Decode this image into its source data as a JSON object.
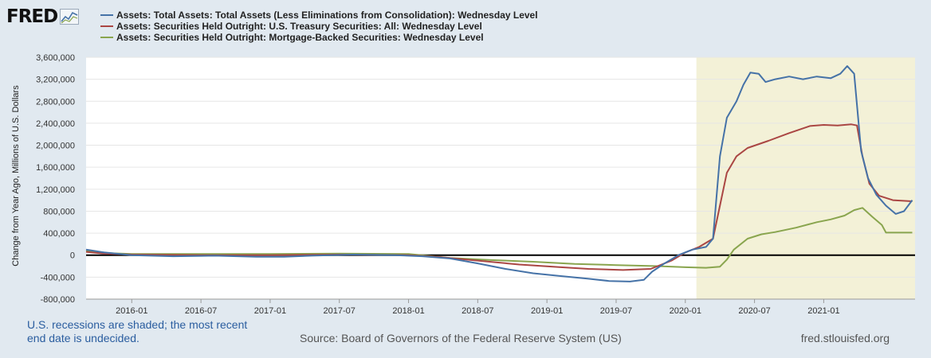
{
  "logo": {
    "text": "FRED",
    "icon": "fred-chart-logo-icon"
  },
  "legend": [
    {
      "label": "Assets: Total Assets: Total Assets (Less Eliminations from Consolidation): Wednesday Level",
      "color": "#4572a7"
    },
    {
      "label": "Assets: Securities Held Outright: U.S. Treasury Securities: All: Wednesday Level",
      "color": "#aa4643"
    },
    {
      "label": "Assets: Securities Held Outright: Mortgage-Backed Securities: Wednesday Level",
      "color": "#89a54e"
    }
  ],
  "footer": {
    "note": "U.S. recessions are shaded; the most recent end date is undecided.",
    "source": "Source: Board of Governors of the Federal Reserve System (US)",
    "site": "fred.stlouisfed.org"
  },
  "chart_data": {
    "type": "line",
    "ylabel": "Change from Year Ago, Millions of U.S. Dollars",
    "ylim": [
      -800000,
      3600000
    ],
    "yticks": [
      -800000,
      -400000,
      0,
      400000,
      800000,
      1200000,
      1600000,
      2000000,
      2400000,
      2800000,
      3200000,
      3600000
    ],
    "ytick_labels": [
      "-800,000",
      "-400,000",
      "0",
      "400,000",
      "800,000",
      "1,200,000",
      "1,600,000",
      "2,000,000",
      "2,400,000",
      "2,800,000",
      "3,200,000",
      "3,600,000"
    ],
    "xlim": [
      2015.67,
      2021.66
    ],
    "xticks": [
      2016.0,
      2016.5,
      2017.0,
      2017.5,
      2018.0,
      2018.5,
      2019.0,
      2019.5,
      2020.0,
      2020.5,
      2021.0
    ],
    "xtick_labels": [
      "2016-01",
      "2016-07",
      "2017-01",
      "2017-07",
      "2018-01",
      "2018-07",
      "2019-01",
      "2019-07",
      "2020-01",
      "2020-07",
      "2021-01"
    ],
    "recession": {
      "start": 2020.08,
      "end": 2021.66
    },
    "series": [
      {
        "name": "Total Assets",
        "color": "#4572a7",
        "points": [
          [
            2015.67,
            100000
          ],
          [
            2015.8,
            50000
          ],
          [
            2016.0,
            0
          ],
          [
            2016.3,
            -20000
          ],
          [
            2016.6,
            -10000
          ],
          [
            2016.9,
            -30000
          ],
          [
            2017.1,
            -30000
          ],
          [
            2017.3,
            -10000
          ],
          [
            2017.6,
            10000
          ],
          [
            2017.9,
            0
          ],
          [
            2018.1,
            -20000
          ],
          [
            2018.3,
            -60000
          ],
          [
            2018.5,
            -150000
          ],
          [
            2018.7,
            -250000
          ],
          [
            2018.9,
            -330000
          ],
          [
            2019.1,
            -380000
          ],
          [
            2019.3,
            -430000
          ],
          [
            2019.45,
            -470000
          ],
          [
            2019.6,
            -480000
          ],
          [
            2019.7,
            -450000
          ],
          [
            2019.76,
            -300000
          ],
          [
            2019.85,
            -150000
          ],
          [
            2019.95,
            0
          ],
          [
            2020.05,
            100000
          ],
          [
            2020.15,
            150000
          ],
          [
            2020.2,
            300000
          ],
          [
            2020.25,
            1800000
          ],
          [
            2020.3,
            2500000
          ],
          [
            2020.37,
            2800000
          ],
          [
            2020.42,
            3100000
          ],
          [
            2020.47,
            3320000
          ],
          [
            2020.53,
            3300000
          ],
          [
            2020.58,
            3150000
          ],
          [
            2020.65,
            3200000
          ],
          [
            2020.75,
            3250000
          ],
          [
            2020.85,
            3200000
          ],
          [
            2020.95,
            3250000
          ],
          [
            2021.05,
            3220000
          ],
          [
            2021.12,
            3300000
          ],
          [
            2021.17,
            3440000
          ],
          [
            2021.22,
            3300000
          ],
          [
            2021.27,
            1900000
          ],
          [
            2021.32,
            1400000
          ],
          [
            2021.38,
            1100000
          ],
          [
            2021.45,
            900000
          ],
          [
            2021.52,
            750000
          ],
          [
            2021.58,
            800000
          ],
          [
            2021.64,
            1000000
          ]
        ]
      },
      {
        "name": "U.S. Treasury Securities",
        "color": "#aa4643",
        "points": [
          [
            2015.67,
            60000
          ],
          [
            2015.8,
            30000
          ],
          [
            2016.0,
            10000
          ],
          [
            2016.5,
            0
          ],
          [
            2017.0,
            0
          ],
          [
            2017.5,
            10000
          ],
          [
            2018.0,
            0
          ],
          [
            2018.2,
            -30000
          ],
          [
            2018.5,
            -100000
          ],
          [
            2018.8,
            -170000
          ],
          [
            2019.1,
            -220000
          ],
          [
            2019.3,
            -250000
          ],
          [
            2019.55,
            -270000
          ],
          [
            2019.75,
            -250000
          ],
          [
            2019.9,
            -100000
          ],
          [
            2020.0,
            50000
          ],
          [
            2020.1,
            150000
          ],
          [
            2020.2,
            300000
          ],
          [
            2020.25,
            900000
          ],
          [
            2020.3,
            1500000
          ],
          [
            2020.37,
            1800000
          ],
          [
            2020.45,
            1950000
          ],
          [
            2020.6,
            2080000
          ],
          [
            2020.75,
            2220000
          ],
          [
            2020.9,
            2350000
          ],
          [
            2021.0,
            2370000
          ],
          [
            2021.1,
            2360000
          ],
          [
            2021.2,
            2380000
          ],
          [
            2021.24,
            2360000
          ],
          [
            2021.28,
            1800000
          ],
          [
            2021.33,
            1300000
          ],
          [
            2021.4,
            1080000
          ],
          [
            2021.5,
            1000000
          ],
          [
            2021.64,
            980000
          ]
        ]
      },
      {
        "name": "Mortgage-Backed Securities",
        "color": "#89a54e",
        "points": [
          [
            2015.67,
            80000
          ],
          [
            2015.8,
            40000
          ],
          [
            2016.0,
            20000
          ],
          [
            2016.5,
            20000
          ],
          [
            2017.0,
            20000
          ],
          [
            2017.5,
            30000
          ],
          [
            2018.0,
            20000
          ],
          [
            2018.3,
            -50000
          ],
          [
            2018.6,
            -90000
          ],
          [
            2018.9,
            -120000
          ],
          [
            2019.2,
            -160000
          ],
          [
            2019.5,
            -180000
          ],
          [
            2019.8,
            -200000
          ],
          [
            2020.0,
            -220000
          ],
          [
            2020.15,
            -230000
          ],
          [
            2020.25,
            -210000
          ],
          [
            2020.3,
            -80000
          ],
          [
            2020.35,
            100000
          ],
          [
            2020.45,
            300000
          ],
          [
            2020.55,
            380000
          ],
          [
            2020.65,
            420000
          ],
          [
            2020.8,
            500000
          ],
          [
            2020.95,
            600000
          ],
          [
            2021.05,
            650000
          ],
          [
            2021.15,
            720000
          ],
          [
            2021.22,
            820000
          ],
          [
            2021.28,
            860000
          ],
          [
            2021.35,
            700000
          ],
          [
            2021.42,
            550000
          ],
          [
            2021.45,
            410000
          ],
          [
            2021.64,
            410000
          ]
        ]
      }
    ]
  }
}
